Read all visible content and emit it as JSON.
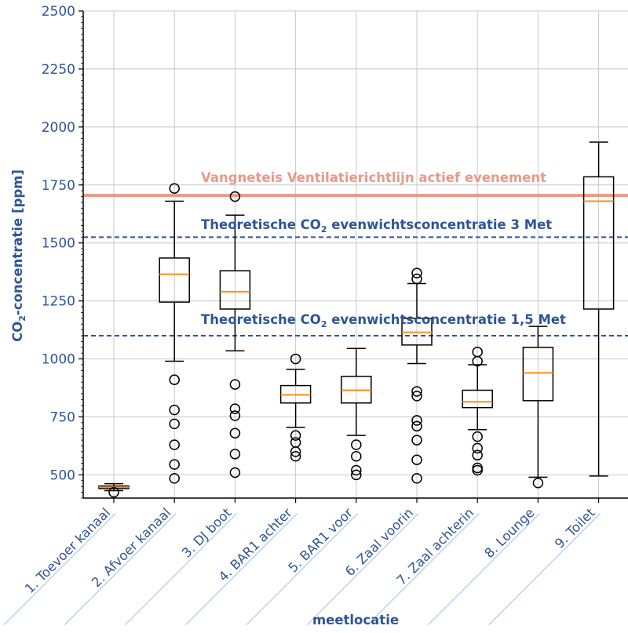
{
  "chart_data": {
    "type": "box",
    "title": "",
    "xlabel": "meetlocatie",
    "ylabel_main": "CO",
    "ylabel_sub": "2",
    "ylabel_rest": "-concentratie [ppm]",
    "ylim": [
      400,
      2500
    ],
    "yticks": [
      500,
      750,
      1000,
      1250,
      1500,
      1750,
      2000,
      2250,
      2500
    ],
    "grid": true,
    "categories": [
      "1. Toevoer kanaal",
      "2. Afvoer kanaal",
      "3. DJ boot",
      "4. BAR1 achter",
      "5. BAR1 voor",
      "6. Zaal voorin",
      "7. Zaal achterin",
      "8. Lounge",
      "9. Toilet"
    ],
    "boxes": [
      {
        "whislo": 432,
        "q1": 441,
        "med": 447,
        "q3": 452,
        "whishi": 462,
        "fliers": [
          425
        ]
      },
      {
        "whislo": 990,
        "q1": 1245,
        "med": 1365,
        "q3": 1435,
        "whishi": 1680,
        "fliers": [
          1735,
          910,
          780,
          720,
          630,
          545,
          485
        ]
      },
      {
        "whislo": 1035,
        "q1": 1215,
        "med": 1290,
        "q3": 1380,
        "whishi": 1620,
        "fliers": [
          1700,
          890,
          785,
          755,
          680,
          590,
          510
        ]
      },
      {
        "whislo": 705,
        "q1": 810,
        "med": 845,
        "q3": 885,
        "whishi": 955,
        "fliers": [
          1000,
          670,
          640,
          600,
          580
        ]
      },
      {
        "whislo": 670,
        "q1": 810,
        "med": 865,
        "q3": 925,
        "whishi": 1045,
        "fliers": [
          630,
          580,
          520,
          500
        ]
      },
      {
        "whislo": 980,
        "q1": 1060,
        "med": 1115,
        "q3": 1175,
        "whishi": 1325,
        "fliers": [
          1370,
          1345,
          860,
          840,
          735,
          710,
          650,
          565,
          485
        ]
      },
      {
        "whislo": 695,
        "q1": 790,
        "med": 815,
        "q3": 865,
        "whishi": 975,
        "fliers": [
          1030,
          990,
          665,
          615,
          585,
          530,
          520
        ]
      },
      {
        "whislo": 490,
        "q1": 820,
        "med": 940,
        "q3": 1050,
        "whishi": 1140,
        "fliers": [
          465
        ]
      },
      {
        "whislo": 495,
        "q1": 1215,
        "med": 1680,
        "q3": 1785,
        "whishi": 1935,
        "fliers": []
      }
    ],
    "reference_lines": [
      {
        "y": 1705,
        "style": "solid",
        "color": "#e8998a",
        "label_main": "Vangneteis Ventilatierichtlijn actief evenement",
        "label_sub": "",
        "label_rest": ""
      },
      {
        "y": 1525,
        "style": "dashed",
        "color": "#2f5597",
        "label_main": "Theoretische CO",
        "label_sub": "2",
        "label_rest": " evenwichtsconcentratie 3 Met"
      },
      {
        "y": 1100,
        "style": "dashed",
        "color": "#2f5597",
        "label_main": "Theoretische CO",
        "label_sub": "2",
        "label_rest": " evenwichtsconcentratie 1,5 Met"
      }
    ],
    "colors": {
      "axis_text": "#2f5597",
      "median": "#ff8c1a",
      "box": "#000000",
      "grid": "#c8c8c8",
      "xlabel_line": "#9dc3e6"
    }
  }
}
